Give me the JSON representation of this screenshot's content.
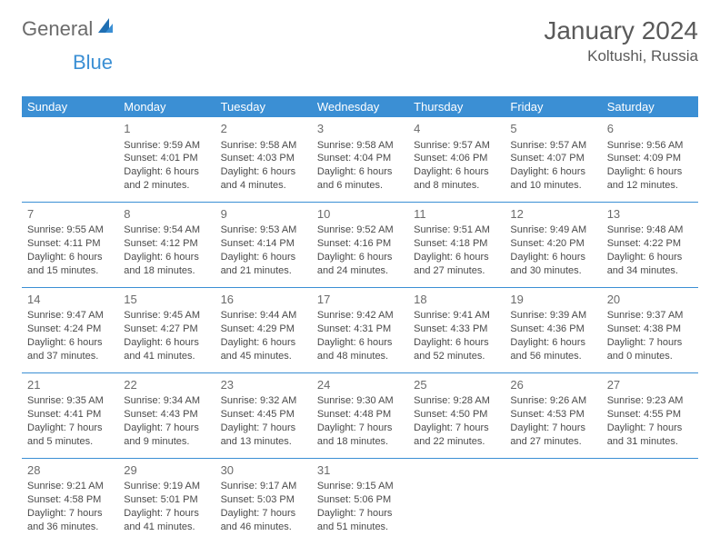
{
  "logo": {
    "part1": "General",
    "part2": "Blue"
  },
  "title": "January 2024",
  "location": "Koltushi, Russia",
  "colors": {
    "header_bg": "#3b8fd4",
    "header_text": "#ffffff",
    "border": "#3b8fd4",
    "body_text": "#4a4a4a",
    "daynum": "#6b6b6b",
    "logo_gray": "#6b6b6b",
    "logo_blue": "#3b8fd4",
    "background": "#ffffff"
  },
  "day_headers": [
    "Sunday",
    "Monday",
    "Tuesday",
    "Wednesday",
    "Thursday",
    "Friday",
    "Saturday"
  ],
  "weeks": [
    [
      null,
      {
        "n": "1",
        "sr": "Sunrise: 9:59 AM",
        "ss": "Sunset: 4:01 PM",
        "d1": "Daylight: 6 hours",
        "d2": "and 2 minutes."
      },
      {
        "n": "2",
        "sr": "Sunrise: 9:58 AM",
        "ss": "Sunset: 4:03 PM",
        "d1": "Daylight: 6 hours",
        "d2": "and 4 minutes."
      },
      {
        "n": "3",
        "sr": "Sunrise: 9:58 AM",
        "ss": "Sunset: 4:04 PM",
        "d1": "Daylight: 6 hours",
        "d2": "and 6 minutes."
      },
      {
        "n": "4",
        "sr": "Sunrise: 9:57 AM",
        "ss": "Sunset: 4:06 PM",
        "d1": "Daylight: 6 hours",
        "d2": "and 8 minutes."
      },
      {
        "n": "5",
        "sr": "Sunrise: 9:57 AM",
        "ss": "Sunset: 4:07 PM",
        "d1": "Daylight: 6 hours",
        "d2": "and 10 minutes."
      },
      {
        "n": "6",
        "sr": "Sunrise: 9:56 AM",
        "ss": "Sunset: 4:09 PM",
        "d1": "Daylight: 6 hours",
        "d2": "and 12 minutes."
      }
    ],
    [
      {
        "n": "7",
        "sr": "Sunrise: 9:55 AM",
        "ss": "Sunset: 4:11 PM",
        "d1": "Daylight: 6 hours",
        "d2": "and 15 minutes."
      },
      {
        "n": "8",
        "sr": "Sunrise: 9:54 AM",
        "ss": "Sunset: 4:12 PM",
        "d1": "Daylight: 6 hours",
        "d2": "and 18 minutes."
      },
      {
        "n": "9",
        "sr": "Sunrise: 9:53 AM",
        "ss": "Sunset: 4:14 PM",
        "d1": "Daylight: 6 hours",
        "d2": "and 21 minutes."
      },
      {
        "n": "10",
        "sr": "Sunrise: 9:52 AM",
        "ss": "Sunset: 4:16 PM",
        "d1": "Daylight: 6 hours",
        "d2": "and 24 minutes."
      },
      {
        "n": "11",
        "sr": "Sunrise: 9:51 AM",
        "ss": "Sunset: 4:18 PM",
        "d1": "Daylight: 6 hours",
        "d2": "and 27 minutes."
      },
      {
        "n": "12",
        "sr": "Sunrise: 9:49 AM",
        "ss": "Sunset: 4:20 PM",
        "d1": "Daylight: 6 hours",
        "d2": "and 30 minutes."
      },
      {
        "n": "13",
        "sr": "Sunrise: 9:48 AM",
        "ss": "Sunset: 4:22 PM",
        "d1": "Daylight: 6 hours",
        "d2": "and 34 minutes."
      }
    ],
    [
      {
        "n": "14",
        "sr": "Sunrise: 9:47 AM",
        "ss": "Sunset: 4:24 PM",
        "d1": "Daylight: 6 hours",
        "d2": "and 37 minutes."
      },
      {
        "n": "15",
        "sr": "Sunrise: 9:45 AM",
        "ss": "Sunset: 4:27 PM",
        "d1": "Daylight: 6 hours",
        "d2": "and 41 minutes."
      },
      {
        "n": "16",
        "sr": "Sunrise: 9:44 AM",
        "ss": "Sunset: 4:29 PM",
        "d1": "Daylight: 6 hours",
        "d2": "and 45 minutes."
      },
      {
        "n": "17",
        "sr": "Sunrise: 9:42 AM",
        "ss": "Sunset: 4:31 PM",
        "d1": "Daylight: 6 hours",
        "d2": "and 48 minutes."
      },
      {
        "n": "18",
        "sr": "Sunrise: 9:41 AM",
        "ss": "Sunset: 4:33 PM",
        "d1": "Daylight: 6 hours",
        "d2": "and 52 minutes."
      },
      {
        "n": "19",
        "sr": "Sunrise: 9:39 AM",
        "ss": "Sunset: 4:36 PM",
        "d1": "Daylight: 6 hours",
        "d2": "and 56 minutes."
      },
      {
        "n": "20",
        "sr": "Sunrise: 9:37 AM",
        "ss": "Sunset: 4:38 PM",
        "d1": "Daylight: 7 hours",
        "d2": "and 0 minutes."
      }
    ],
    [
      {
        "n": "21",
        "sr": "Sunrise: 9:35 AM",
        "ss": "Sunset: 4:41 PM",
        "d1": "Daylight: 7 hours",
        "d2": "and 5 minutes."
      },
      {
        "n": "22",
        "sr": "Sunrise: 9:34 AM",
        "ss": "Sunset: 4:43 PM",
        "d1": "Daylight: 7 hours",
        "d2": "and 9 minutes."
      },
      {
        "n": "23",
        "sr": "Sunrise: 9:32 AM",
        "ss": "Sunset: 4:45 PM",
        "d1": "Daylight: 7 hours",
        "d2": "and 13 minutes."
      },
      {
        "n": "24",
        "sr": "Sunrise: 9:30 AM",
        "ss": "Sunset: 4:48 PM",
        "d1": "Daylight: 7 hours",
        "d2": "and 18 minutes."
      },
      {
        "n": "25",
        "sr": "Sunrise: 9:28 AM",
        "ss": "Sunset: 4:50 PM",
        "d1": "Daylight: 7 hours",
        "d2": "and 22 minutes."
      },
      {
        "n": "26",
        "sr": "Sunrise: 9:26 AM",
        "ss": "Sunset: 4:53 PM",
        "d1": "Daylight: 7 hours",
        "d2": "and 27 minutes."
      },
      {
        "n": "27",
        "sr": "Sunrise: 9:23 AM",
        "ss": "Sunset: 4:55 PM",
        "d1": "Daylight: 7 hours",
        "d2": "and 31 minutes."
      }
    ],
    [
      {
        "n": "28",
        "sr": "Sunrise: 9:21 AM",
        "ss": "Sunset: 4:58 PM",
        "d1": "Daylight: 7 hours",
        "d2": "and 36 minutes."
      },
      {
        "n": "29",
        "sr": "Sunrise: 9:19 AM",
        "ss": "Sunset: 5:01 PM",
        "d1": "Daylight: 7 hours",
        "d2": "and 41 minutes."
      },
      {
        "n": "30",
        "sr": "Sunrise: 9:17 AM",
        "ss": "Sunset: 5:03 PM",
        "d1": "Daylight: 7 hours",
        "d2": "and 46 minutes."
      },
      {
        "n": "31",
        "sr": "Sunrise: 9:15 AM",
        "ss": "Sunset: 5:06 PM",
        "d1": "Daylight: 7 hours",
        "d2": "and 51 minutes."
      },
      null,
      null,
      null
    ]
  ]
}
